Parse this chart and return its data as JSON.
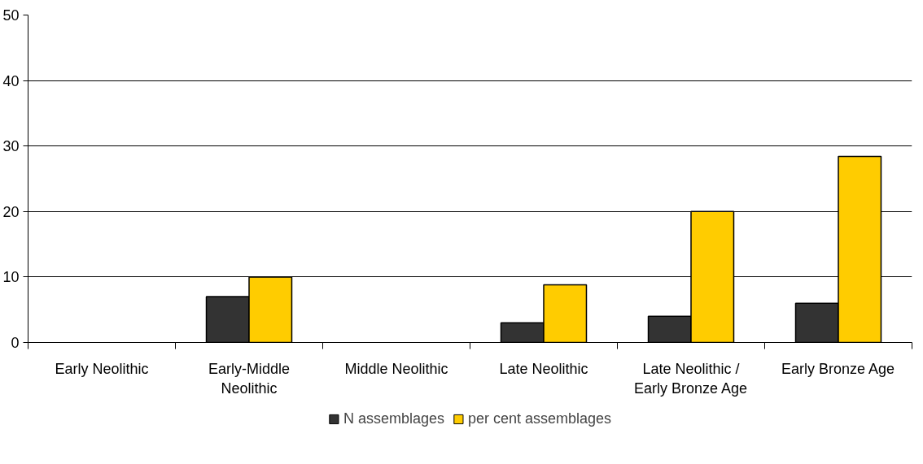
{
  "chart_data": {
    "type": "bar",
    "categories": [
      "Early Neolithic",
      "Early-Middle Neolithic",
      "Middle Neolithic",
      "Late Neolithic",
      "Late Neolithic / Early Bronze Age",
      "Early Bronze Age"
    ],
    "series": [
      {
        "name": "N assemblages",
        "color": "#333333",
        "values": [
          0,
          7,
          0,
          3,
          4,
          6
        ]
      },
      {
        "name": "per cent assemblages",
        "color": "#ffcc00",
        "values": [
          0,
          10,
          0,
          8.8,
          20,
          28.4
        ]
      }
    ],
    "ylim": [
      0,
      50
    ],
    "yticks": [
      0,
      10,
      20,
      30,
      40,
      50
    ],
    "grid": "y",
    "legend": "bottom"
  }
}
